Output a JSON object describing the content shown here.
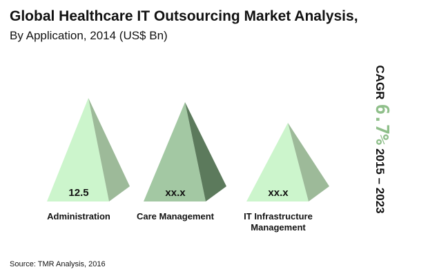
{
  "chart_data": {
    "type": "bar",
    "title": "Global Healthcare IT Outsourcing Market Analysis,",
    "subtitle": "By Application, 2014 (US$ Bn)",
    "categories": [
      "Administration",
      "Care Management",
      "IT Infrastructure Management"
    ],
    "category_lines": [
      [
        "Administration"
      ],
      [
        "Care Management"
      ],
      [
        "IT Infrastructure",
        "Management"
      ]
    ],
    "value_labels": [
      "12.5",
      "xx.x",
      "xx.x"
    ],
    "relative_heights": [
      1.0,
      0.96,
      0.76
    ],
    "colors": {
      "light_front": "#ccf5cc",
      "light_side": "#9dba99",
      "dark_front": "#a3c8a3",
      "dark_side": "#5c7a5c",
      "cagr_value": "#8fbf8a"
    },
    "highlight_index": 1,
    "annotation": {
      "cagr_label": "CAGR",
      "cagr_value": "6.7%",
      "period": "2015 – 2023"
    }
  },
  "source": "Source: TMR Analysis, 2016"
}
